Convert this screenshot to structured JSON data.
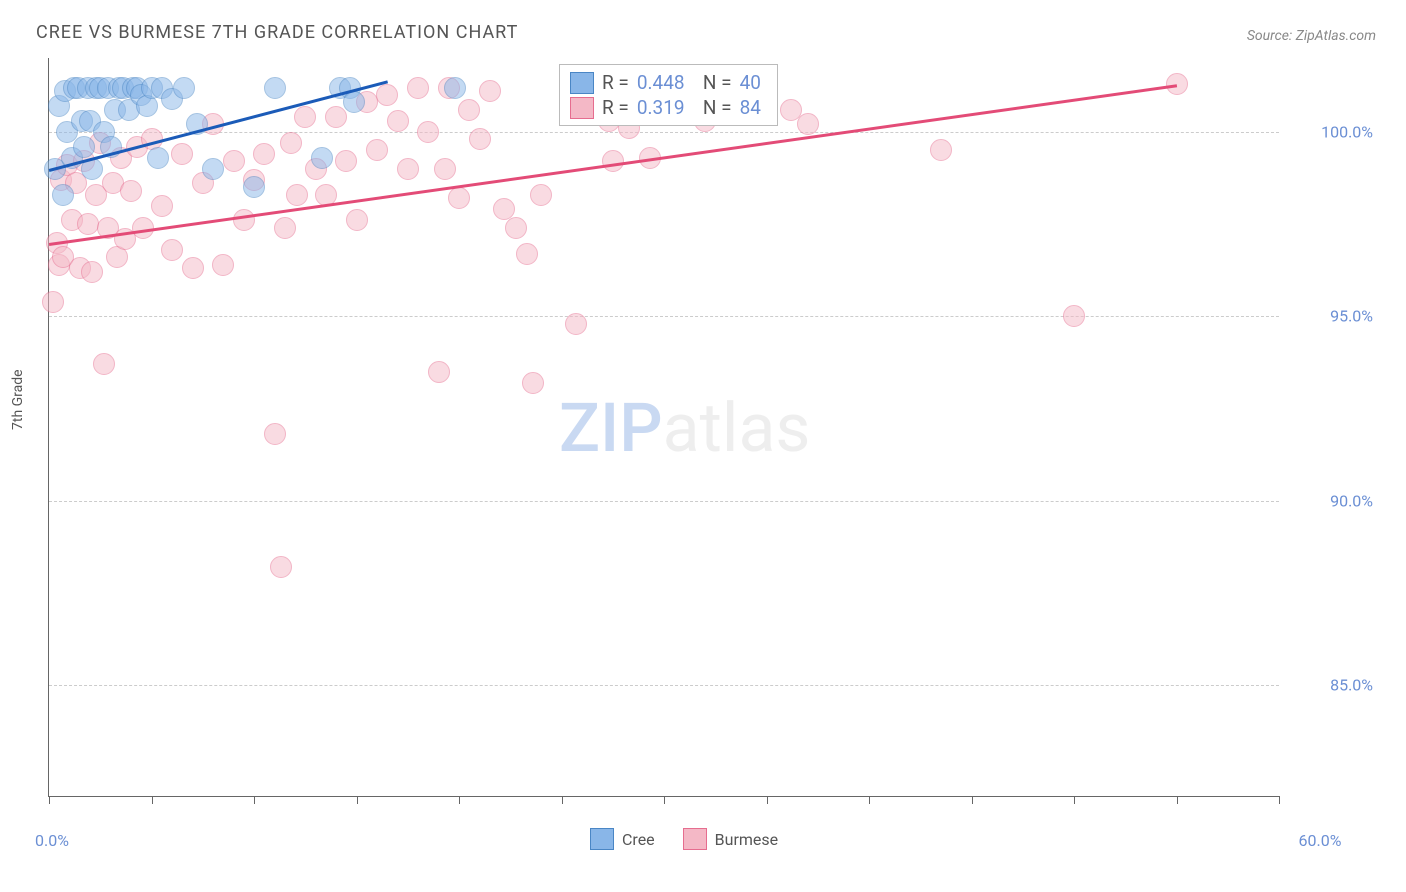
{
  "title": "CREE VS BURMESE 7TH GRADE CORRELATION CHART",
  "source_label": "Source: ZipAtlas.com",
  "y_axis_label": "7th Grade",
  "watermark_a": "ZIP",
  "watermark_b": "atlas",
  "chart": {
    "type": "scatter",
    "xlim": [
      0,
      60
    ],
    "ylim": [
      82,
      102
    ],
    "x_ticks": [
      0,
      5,
      10,
      15,
      20,
      25,
      30,
      35,
      40,
      45,
      50,
      55,
      60
    ],
    "x_tick_labels": {
      "0": "0.0%",
      "60": "60.0%"
    },
    "y_gridlines": [
      85,
      90,
      95,
      100
    ],
    "y_tick_labels": {
      "85": "85.0%",
      "90": "90.0%",
      "95": "95.0%",
      "100": "100.0%"
    },
    "grid_color": "#cccccc",
    "axis_color": "#666666",
    "tick_label_color": "#6b8fd4",
    "background_color": "#ffffff",
    "marker_radius": 10,
    "marker_opacity": 0.5,
    "series": {
      "cree": {
        "label": "Cree",
        "color_fill": "#89b6e8",
        "color_stroke": "#4a86c5",
        "R": "0.448",
        "N": "40",
        "trend": {
          "x1": 0,
          "y1": 99.0,
          "x2": 16.5,
          "y2": 101.4,
          "color": "#1b5bb8"
        },
        "points": [
          [
            0.3,
            99.0
          ],
          [
            0.5,
            100.7
          ],
          [
            0.7,
            98.3
          ],
          [
            0.8,
            101.1
          ],
          [
            0.9,
            100.0
          ],
          [
            1.1,
            99.3
          ],
          [
            1.2,
            101.2
          ],
          [
            1.4,
            101.2
          ],
          [
            1.6,
            100.3
          ],
          [
            1.7,
            99.6
          ],
          [
            1.9,
            101.2
          ],
          [
            2.0,
            100.3
          ],
          [
            2.1,
            99.0
          ],
          [
            2.3,
            101.2
          ],
          [
            2.5,
            101.2
          ],
          [
            2.7,
            100.0
          ],
          [
            2.9,
            101.2
          ],
          [
            3.0,
            99.6
          ],
          [
            3.2,
            100.6
          ],
          [
            3.4,
            101.2
          ],
          [
            3.6,
            101.2
          ],
          [
            3.9,
            100.6
          ],
          [
            4.1,
            101.2
          ],
          [
            4.3,
            101.2
          ],
          [
            4.5,
            101.0
          ],
          [
            4.8,
            100.7
          ],
          [
            5.0,
            101.2
          ],
          [
            5.3,
            99.3
          ],
          [
            5.5,
            101.2
          ],
          [
            6.0,
            100.9
          ],
          [
            6.6,
            101.2
          ],
          [
            7.2,
            100.2
          ],
          [
            8.0,
            99.0
          ],
          [
            10.0,
            98.5
          ],
          [
            11.0,
            101.2
          ],
          [
            13.3,
            99.3
          ],
          [
            14.2,
            101.2
          ],
          [
            14.7,
            101.2
          ],
          [
            14.9,
            100.8
          ],
          [
            19.8,
            101.2
          ]
        ]
      },
      "burmese": {
        "label": "Burmese",
        "color_fill": "#f4b8c6",
        "color_stroke": "#e66d8f",
        "R": "0.319",
        "N": "84",
        "trend": {
          "x1": 0,
          "y1": 97.0,
          "x2": 55,
          "y2": 101.3,
          "color": "#e34b77"
        },
        "points": [
          [
            0.2,
            95.4
          ],
          [
            0.4,
            97.0
          ],
          [
            0.5,
            96.4
          ],
          [
            0.6,
            98.7
          ],
          [
            0.7,
            96.6
          ],
          [
            0.9,
            99.1
          ],
          [
            1.1,
            97.6
          ],
          [
            1.3,
            98.6
          ],
          [
            1.5,
            96.3
          ],
          [
            1.7,
            99.2
          ],
          [
            1.9,
            97.5
          ],
          [
            2.1,
            96.2
          ],
          [
            2.3,
            98.3
          ],
          [
            2.5,
            99.7
          ],
          [
            2.7,
            93.7
          ],
          [
            2.9,
            97.4
          ],
          [
            3.1,
            98.6
          ],
          [
            3.3,
            96.6
          ],
          [
            3.5,
            99.3
          ],
          [
            3.7,
            97.1
          ],
          [
            4.0,
            98.4
          ],
          [
            4.3,
            99.6
          ],
          [
            4.6,
            97.4
          ],
          [
            5.0,
            99.8
          ],
          [
            5.5,
            98.0
          ],
          [
            6.0,
            96.8
          ],
          [
            6.5,
            99.4
          ],
          [
            7.0,
            96.3
          ],
          [
            7.5,
            98.6
          ],
          [
            8.0,
            100.2
          ],
          [
            8.5,
            96.4
          ],
          [
            9.0,
            99.2
          ],
          [
            9.5,
            97.6
          ],
          [
            10.0,
            98.7
          ],
          [
            10.5,
            99.4
          ],
          [
            11.0,
            91.8
          ],
          [
            11.3,
            88.2
          ],
          [
            11.5,
            97.4
          ],
          [
            11.8,
            99.7
          ],
          [
            12.1,
            98.3
          ],
          [
            12.5,
            100.4
          ],
          [
            13.0,
            99.0
          ],
          [
            13.5,
            98.3
          ],
          [
            14.0,
            100.4
          ],
          [
            14.5,
            99.2
          ],
          [
            15.0,
            97.6
          ],
          [
            15.5,
            100.8
          ],
          [
            16.0,
            99.5
          ],
          [
            16.5,
            101.0
          ],
          [
            17.0,
            100.3
          ],
          [
            17.5,
            99.0
          ],
          [
            18.0,
            101.2
          ],
          [
            18.5,
            100.0
          ],
          [
            19.0,
            93.5
          ],
          [
            19.3,
            99.0
          ],
          [
            19.5,
            101.2
          ],
          [
            20.0,
            98.2
          ],
          [
            20.5,
            100.6
          ],
          [
            21.0,
            99.8
          ],
          [
            21.5,
            101.1
          ],
          [
            22.2,
            97.9
          ],
          [
            22.8,
            97.4
          ],
          [
            23.3,
            96.7
          ],
          [
            23.6,
            93.2
          ],
          [
            24.0,
            98.3
          ],
          [
            25.7,
            94.8
          ],
          [
            26.8,
            101.1
          ],
          [
            27.3,
            100.3
          ],
          [
            27.5,
            99.2
          ],
          [
            28.0,
            101.2
          ],
          [
            28.3,
            100.1
          ],
          [
            28.8,
            101.2
          ],
          [
            29.3,
            99.3
          ],
          [
            29.5,
            101.2
          ],
          [
            30.0,
            100.6
          ],
          [
            31.0,
            101.2
          ],
          [
            32.0,
            100.3
          ],
          [
            33.0,
            101.1
          ],
          [
            34.7,
            101.2
          ],
          [
            36.2,
            100.6
          ],
          [
            37.0,
            100.2
          ],
          [
            43.5,
            99.5
          ],
          [
            50.0,
            95.0
          ],
          [
            55.0,
            101.3
          ]
        ]
      }
    }
  },
  "legend": {
    "R_label": "R =",
    "N_label": "N ="
  }
}
